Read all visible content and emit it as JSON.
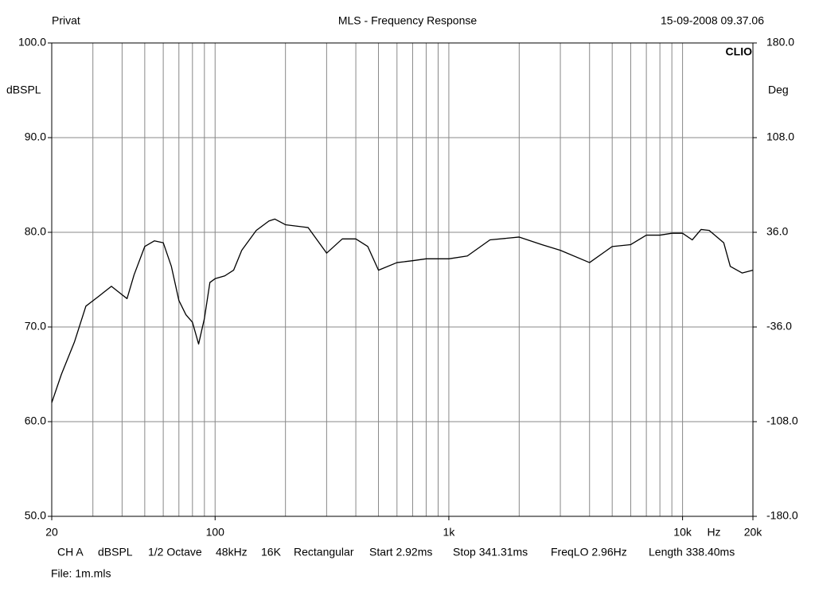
{
  "chart_data": {
    "type": "line",
    "title": "MLS - Frequency Response",
    "header_left": "Privat",
    "header_right": "15-09-2008 09.37.06",
    "brand": "CLIO",
    "y_label": "dBSPL",
    "y2_label": "Deg",
    "x_label": "Hz",
    "log_x": true,
    "grid": true,
    "xlim": [
      20,
      20000
    ],
    "xticks": [
      20,
      100,
      {
        "value": 1000,
        "label": "1k"
      },
      {
        "value": 10000,
        "label": "10k"
      },
      {
        "value": 20000,
        "label": "20k"
      }
    ],
    "x_minor_ticks": [
      30,
      40,
      50,
      60,
      70,
      80,
      90,
      200,
      300,
      400,
      500,
      600,
      700,
      800,
      900,
      2000,
      3000,
      4000,
      5000,
      6000,
      7000,
      8000,
      9000
    ],
    "ylim": [
      50,
      100
    ],
    "yticks": [
      {
        "value": 50,
        "label": "50.0"
      },
      {
        "value": 60,
        "label": "60.0"
      },
      {
        "value": 70,
        "label": "70.0"
      },
      {
        "value": 80,
        "label": "80.0"
      },
      {
        "value": 90,
        "label": "90.0"
      },
      {
        "value": 100,
        "label": "100.0"
      }
    ],
    "y2lim": [
      -180,
      180
    ],
    "y2ticks": [
      {
        "value": -180,
        "label": "-180.0"
      },
      {
        "value": -108,
        "label": "-108.0"
      },
      {
        "value": -36,
        "label": "-36.0"
      },
      {
        "value": 36,
        "label": "36.0"
      },
      {
        "value": 108,
        "label": "108.0"
      },
      {
        "value": 180,
        "label": "180.0"
      }
    ],
    "x": [
      20,
      22,
      25,
      28,
      32,
      36,
      40,
      42,
      45,
      50,
      55,
      60,
      65,
      70,
      75,
      80,
      85,
      90,
      95,
      100,
      110,
      120,
      130,
      150,
      170,
      180,
      200,
      250,
      300,
      350,
      400,
      450,
      500,
      600,
      700,
      800,
      900,
      1000,
      1200,
      1500,
      2000,
      2500,
      3000,
      4000,
      5000,
      6000,
      7000,
      8000,
      9000,
      10000,
      11000,
      12000,
      13000,
      15000,
      16000,
      18000,
      20000
    ],
    "series": [
      {
        "color": "#000000",
        "values": [
          62.0,
          65.0,
          68.4,
          72.2,
          73.3,
          74.3,
          73.4,
          73.0,
          75.5,
          78.5,
          79.1,
          78.9,
          76.4,
          72.8,
          71.3,
          70.5,
          68.2,
          70.9,
          74.7,
          75.1,
          75.4,
          76.0,
          78.1,
          80.2,
          81.2,
          81.4,
          80.8,
          80.5,
          77.8,
          79.3,
          79.3,
          78.5,
          76.0,
          76.8,
          77.0,
          77.2,
          77.2,
          77.2,
          77.5,
          79.2,
          79.5,
          78.7,
          78.1,
          76.8,
          78.5,
          78.7,
          79.7,
          79.7,
          79.9,
          79.9,
          79.2,
          80.3,
          80.2,
          78.9,
          76.4,
          75.7,
          76.0
        ]
      }
    ],
    "info": [
      "CH A",
      "dBSPL",
      "1/2 Octave",
      "48kHz",
      "16K",
      "Rectangular",
      "Start 2.92ms",
      "Stop 341.31ms",
      "FreqLO 2.96Hz",
      "Length 338.40ms"
    ],
    "file": "File: 1m.mls"
  }
}
